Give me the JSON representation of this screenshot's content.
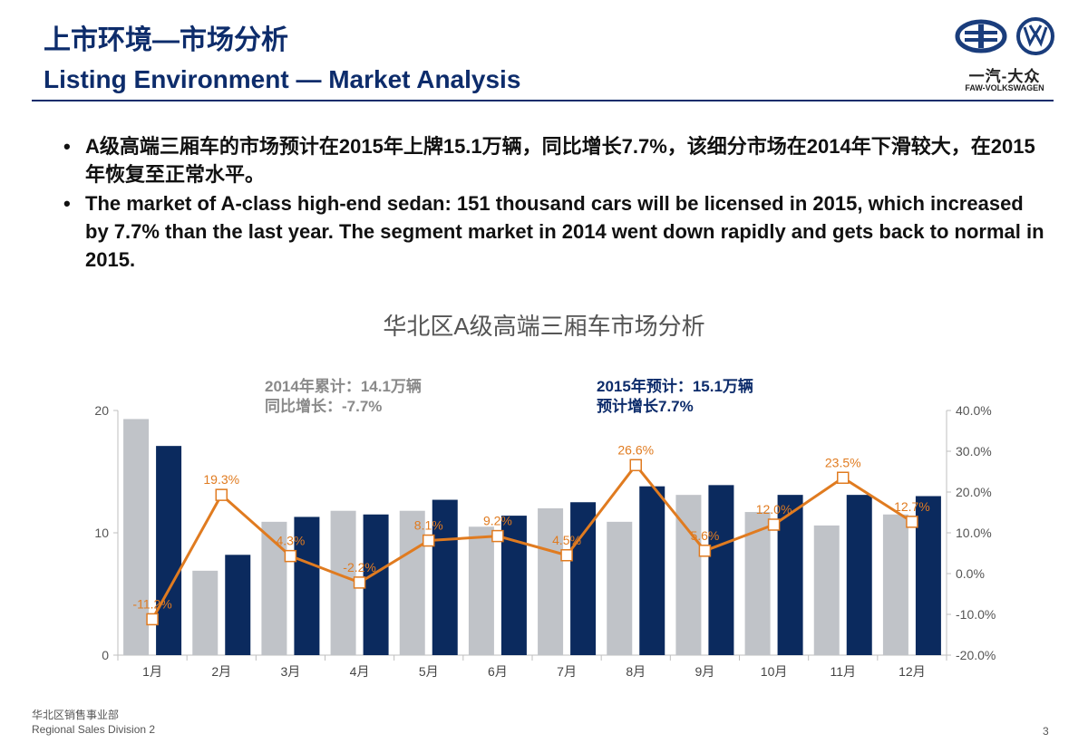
{
  "header": {
    "title_cn": "上市环境—市场分析",
    "title_en": "Listing Environment — Market Analysis",
    "logo_cn": "一汽-大众",
    "logo_en": "FAW-VOLKSWAGEN"
  },
  "bullets": [
    "A级高端三厢车的市场预计在2015年上牌15.1万辆，同比增长7.7%，该细分市场在2014年下滑较大，在2015年恢复至正常水平。",
    "The market of A-class high-end sedan: 151 thousand cars will be licensed in 2015, which increased by 7.7% than the last year. The segment market in 2014 went down rapidly and gets back to normal in 2015."
  ],
  "annotations": {
    "a2014_line1": "2014年累计：14.1万辆",
    "a2014_line2": "同比增长：-7.7%",
    "a2015_line1": "2015年预计：15.1万辆",
    "a2015_line2": "预计增长7.7%"
  },
  "footer": {
    "division_cn": "华北区销售事业部",
    "division_en": "Regional Sales Division 2",
    "page": "3"
  },
  "colors": {
    "bar_2014": "#c0c3c8",
    "bar_2015": "#0b2a5e",
    "line": "#e07b20",
    "title_blue": "#0d2c6b"
  },
  "chart_data": {
    "type": "bar",
    "title": "华北区A级高端三厢车市场分析",
    "categories": [
      "1月",
      "2月",
      "3月",
      "4月",
      "5月",
      "6月",
      "7月",
      "8月",
      "9月",
      "10月",
      "11月",
      "12月"
    ],
    "series": [
      {
        "name": "2014",
        "type": "bar",
        "axis": "left",
        "values": [
          19.3,
          6.9,
          10.9,
          11.8,
          11.8,
          10.5,
          12.0,
          10.9,
          13.1,
          11.7,
          10.6,
          11.5
        ]
      },
      {
        "name": "2015",
        "type": "bar",
        "axis": "left",
        "values": [
          17.1,
          8.2,
          11.3,
          11.5,
          12.7,
          11.4,
          12.5,
          13.8,
          13.9,
          13.1,
          13.1,
          13.0
        ]
      },
      {
        "name": "growth",
        "type": "line",
        "axis": "right",
        "values": [
          -11.2,
          19.3,
          4.3,
          -2.2,
          8.1,
          9.2,
          4.5,
          26.6,
          5.6,
          12.0,
          23.5,
          12.7
        ],
        "labels": [
          "-11.2%",
          "19.3%",
          "4.3%",
          "-2.2%",
          "8.1%",
          "9.2%",
          "4.5%",
          "26.6%",
          "5.6%",
          "12.0%",
          "23.5%",
          "12.7%"
        ]
      }
    ],
    "y_left": {
      "min": 0,
      "max": 20,
      "ticks": [
        0,
        10,
        20
      ],
      "tick_labels": [
        "0",
        "10",
        "20"
      ]
    },
    "y_right": {
      "min": -20,
      "max": 40,
      "ticks": [
        -20,
        -10,
        0,
        10,
        20,
        30,
        40
      ],
      "tick_labels": [
        "-20.0%",
        "-10.0%",
        "0.0%",
        "10.0%",
        "20.0%",
        "30.0%",
        "40.0%"
      ]
    },
    "grid": false,
    "legend": "none"
  }
}
